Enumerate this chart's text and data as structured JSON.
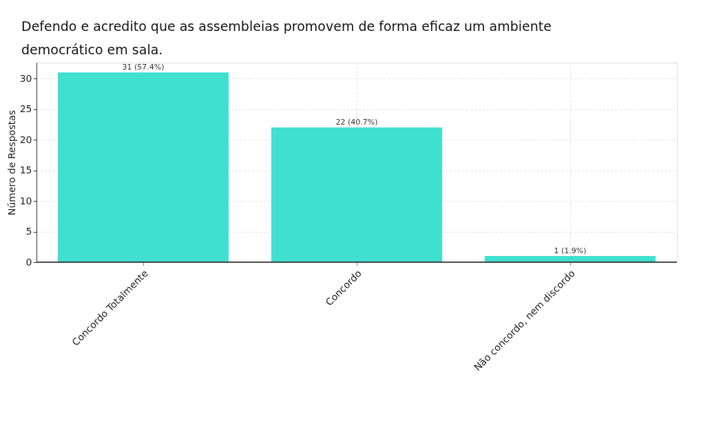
{
  "chart_data": {
    "type": "bar",
    "title": "Defendo e acredito que as assembleias promovem de forma eficaz um ambiente democrático em sala.",
    "ylabel": "Número de Respostas",
    "categories": [
      "Concordo Totalmente",
      "Concordo",
      "Não concordo, nem discordo"
    ],
    "values": [
      31,
      22,
      1
    ],
    "value_labels": [
      "31 (57.4%)",
      "22 (40.7%)",
      "1 (1.9%)"
    ],
    "color": "#40e0d0",
    "ylim": [
      0,
      32.6
    ],
    "yticks": [
      0,
      5,
      10,
      15,
      20,
      25,
      30
    ],
    "grid": true
  }
}
